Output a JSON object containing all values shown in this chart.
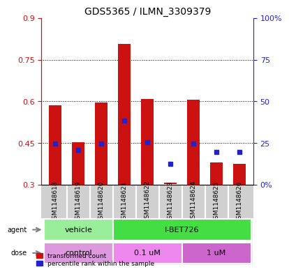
{
  "title": "GDS5365 / ILMN_3309379",
  "samples": [
    "GSM1148618",
    "GSM1148619",
    "GSM1148620",
    "GSM1148621",
    "GSM1148622",
    "GSM1148623",
    "GSM1148624",
    "GSM1148625",
    "GSM1148626"
  ],
  "bar_bottom": [
    0.3,
    0.3,
    0.3,
    0.3,
    0.3,
    0.302,
    0.3,
    0.3,
    0.3
  ],
  "bar_top": [
    0.585,
    0.452,
    0.597,
    0.807,
    0.608,
    0.308,
    0.605,
    0.38,
    0.375
  ],
  "blue_y": [
    0.447,
    0.425,
    0.448,
    0.53,
    0.452,
    0.375,
    0.448,
    0.418,
    0.418
  ],
  "ylim_left": [
    0.3,
    0.9
  ],
  "ylim_right": [
    0,
    100
  ],
  "yticks_left": [
    0.3,
    0.45,
    0.6,
    0.75,
    0.9
  ],
  "yticks_right": [
    0,
    25,
    50,
    75,
    100
  ],
  "ytick_labels_left": [
    "0.3",
    "0.45",
    "0.6",
    "0.75",
    "0.9"
  ],
  "ytick_labels_right": [
    "0%",
    "25",
    "50",
    "75",
    "100%"
  ],
  "bar_color": "#cc1111",
  "blue_color": "#2222cc",
  "bg_plot": "#ffffff",
  "bg_label_row": "#d0d0d0",
  "agent_groups": [
    {
      "label": "vehicle",
      "start": 0,
      "end": 3,
      "color": "#99ee99"
    },
    {
      "label": "I-BET726",
      "start": 3,
      "end": 9,
      "color": "#44dd44"
    }
  ],
  "dose_groups": [
    {
      "label": "control",
      "start": 0,
      "end": 3,
      "color": "#dd99dd"
    },
    {
      "label": "0.1 uM",
      "start": 3,
      "end": 6,
      "color": "#ee88ee"
    },
    {
      "label": "1 uM",
      "start": 6,
      "end": 9,
      "color": "#cc66cc"
    }
  ],
  "legend_items": [
    {
      "label": "transformed count",
      "color": "#cc1111"
    },
    {
      "label": "percentile rank within the sample",
      "color": "#2222cc"
    }
  ]
}
